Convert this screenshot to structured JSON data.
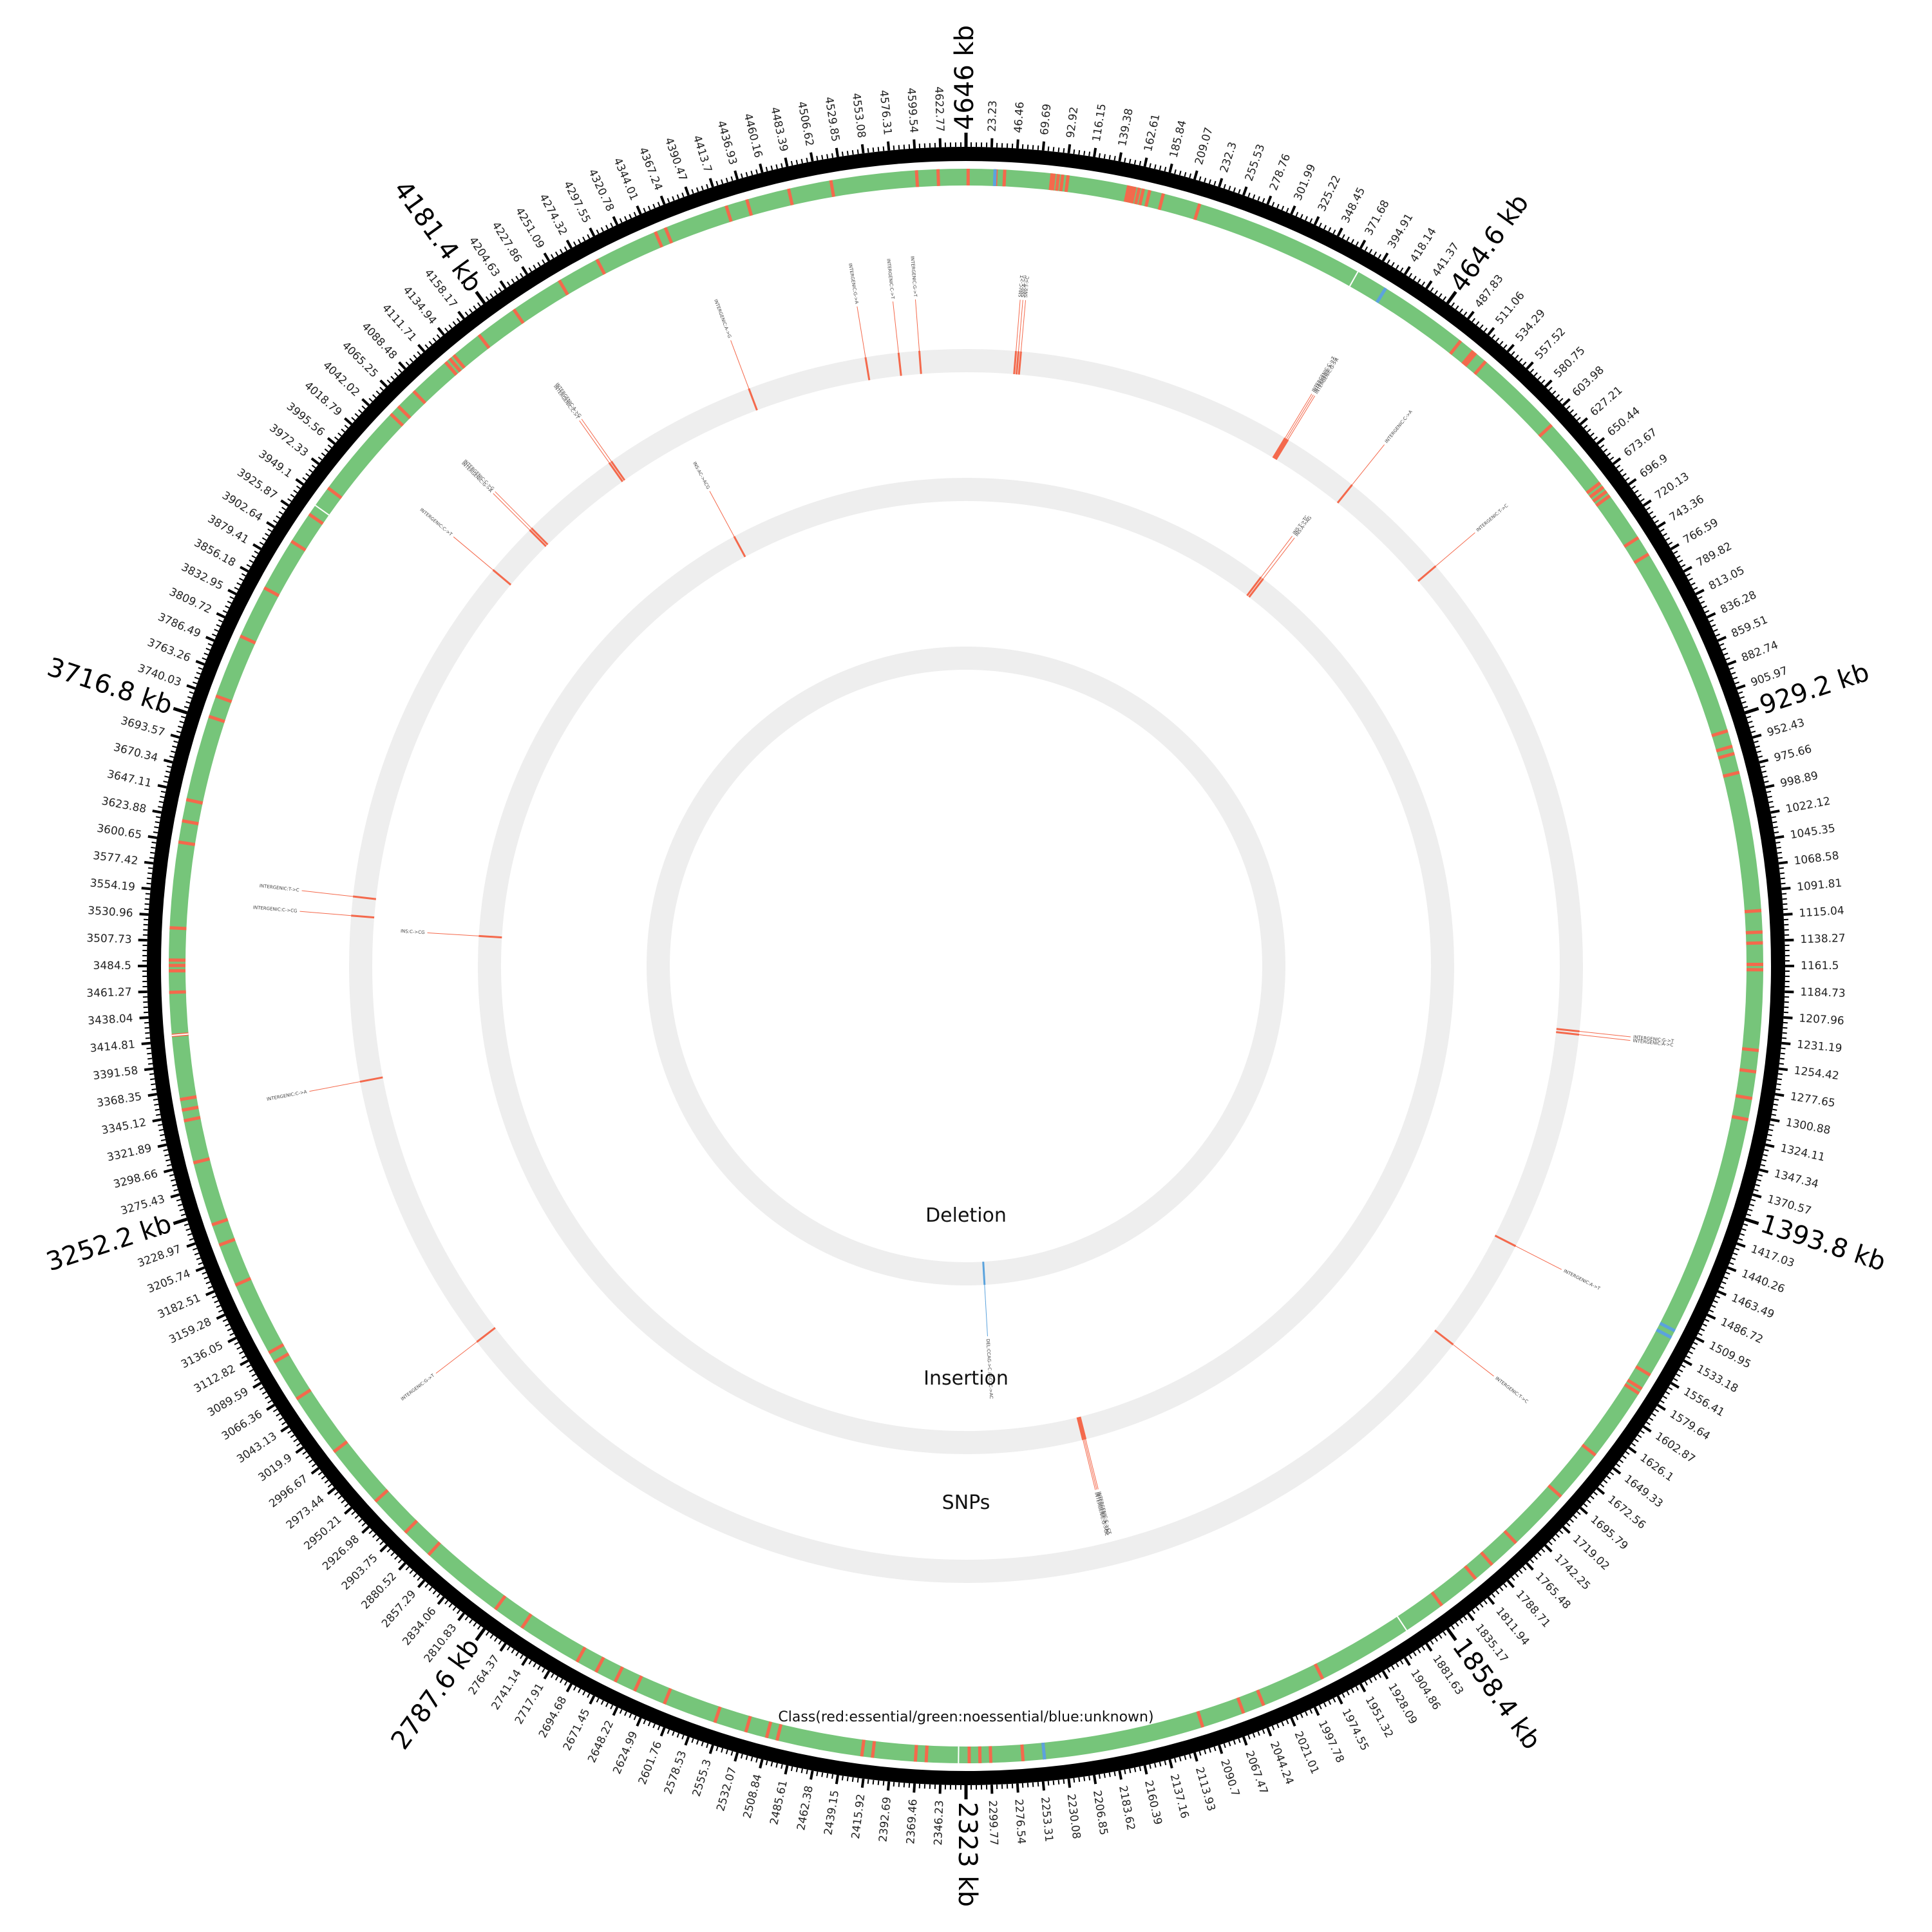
{
  "genome": {
    "length_kb": 4646
  },
  "major_ticks": [
    {
      "kb": 0,
      "label": "4646 kb"
    },
    {
      "kb": 464.6,
      "label": "464.6 kb"
    },
    {
      "kb": 929.2,
      "label": "929.2 kb"
    },
    {
      "kb": 1393.8,
      "label": "1393.8 kb"
    },
    {
      "kb": 1858.4,
      "label": "1858.4 kb"
    },
    {
      "kb": 2323,
      "label": "2323 kb"
    },
    {
      "kb": 2787.6,
      "label": "2787.6 kb"
    },
    {
      "kb": 3252.2,
      "label": "3252.2 kb"
    },
    {
      "kb": 3716.8,
      "label": "3716.8 kb"
    },
    {
      "kb": 4181.4,
      "label": "4181.4 kb"
    }
  ],
  "minor_tick_step_kb": 23.23,
  "minor_tick_count": 200,
  "tracks": {
    "class_title": "Class(red:essential/green:noessential/blue:unknown)",
    "snps_title": "SNPs",
    "insertion_title": "Insertion",
    "deletion_title": "Deletion"
  },
  "colors": {
    "essential": "#f4694c",
    "noessential": "#76c57a",
    "unknown": "#5ba3dd",
    "track_background": "#eeeeee",
    "ideogram": "#000000"
  },
  "class_track": {
    "essential_kb": [
      2,
      28,
      36,
      80,
      82,
      86,
      90,
      95,
      152,
      155,
      158,
      162,
      166,
      172,
      185,
      220,
      495,
      510,
      513,
      525,
      610,
      680,
      685,
      690,
      695,
      742,
      760,
      940,
      955,
      962,
      980,
      1110,
      1130,
      1140,
      1160,
      1165,
      1240,
      1260,
      1285,
      1305,
      1560,
      1575,
      1580,
      1650,
      1700,
      1760,
      1790,
      1810,
      1850,
      1980,
      2040,
      2060,
      2100,
      2250,
      2270,
      2300,
      2310,
      2320,
      2360,
      2370,
      2410,
      2420,
      2500,
      2510,
      2530,
      2560,
      2610,
      2640,
      2660,
      2680,
      2700,
      2760,
      2790,
      2870,
      2900,
      2940,
      3000,
      3060,
      3100,
      3110,
      3180,
      3220,
      3240,
      3300,
      3340,
      3350,
      3360,
      3420,
      3460,
      3480,
      3485,
      3490,
      3520,
      3600,
      3620,
      3640,
      3720,
      3740,
      3800,
      3850,
      3900,
      3930,
      3960,
      4050,
      4060,
      4080,
      4120,
      4125,
      4130,
      4160,
      4200,
      4250,
      4290,
      4350,
      4360,
      4420,
      4440,
      4480,
      4520,
      4600,
      4620
    ],
    "unknown_kb": [
      27,
      410,
      1513,
      1520,
      2250
    ]
  },
  "snps": [
    {
      "kb": 60,
      "label": "SNV:C->T"
    },
    {
      "kb": 63,
      "label": "SNV:A->G"
    },
    {
      "kb": 66,
      "label": "SNV:T->C"
    },
    {
      "kb": 402,
      "label": "INTERGENIC:C->T"
    },
    {
      "kb": 404,
      "label": "INTERGENIC:A->G"
    },
    {
      "kb": 406,
      "label": "INTERGENIC:G->A"
    },
    {
      "kb": 500,
      "label": "INTERGENIC:C->A"
    },
    {
      "kb": 640,
      "label": "INTERGENIC:T->C"
    },
    {
      "kb": 1240,
      "label": "INTERGENIC:G->T"
    },
    {
      "kb": 1244,
      "label": "INTERGENIC:A->C"
    },
    {
      "kb": 1510,
      "label": "INTERGENIC:A->T"
    },
    {
      "kb": 1650,
      "label": "INTERGENIC:T->C"
    },
    {
      "kb": 3000,
      "label": "INTERGENIC:G->T"
    },
    {
      "kb": 3345,
      "label": "INTERGENIC:C->A"
    },
    {
      "kb": 3568,
      "label": "INTERGENIC:T->C"
    },
    {
      "kb": 3545,
      "label": "INTERGENIC:C->CG"
    },
    {
      "kb": 4000,
      "label": "INTERGENIC:C->T"
    },
    {
      "kb": 4065,
      "label": "INTERGENIC:G->A"
    },
    {
      "kb": 4068,
      "label": "INTERGENIC:C->G"
    },
    {
      "kb": 4190,
      "label": "INTERGENIC:C->T"
    },
    {
      "kb": 4193,
      "label": "INTERGENIC:A->G"
    },
    {
      "kb": 4380,
      "label": "INTERGENIC:A->G"
    },
    {
      "kb": 4525,
      "label": "INTERGENIC:G->A"
    },
    {
      "kb": 4565,
      "label": "INTERGENIC:C->T"
    },
    {
      "kb": 4590,
      "label": "INTERGENIC:G->T"
    }
  ],
  "insertions": [
    {
      "kb": 480,
      "label": "INS:T->TC"
    },
    {
      "kb": 484,
      "label": "INS:A->AG"
    },
    {
      "kb": 2140,
      "label": "INTERGENIC:C->CT"
    },
    {
      "kb": 2142,
      "label": "INTERGENIC:A->AG"
    },
    {
      "kb": 2144,
      "label": "INTERGENIC:G->GC"
    },
    {
      "kb": 3530,
      "label": "INS:C->CG"
    },
    {
      "kb": 4280,
      "label": "INS:AC->ACG"
    }
  ],
  "deletions": [
    {
      "kb": 2280,
      "label": "DEL:CCAG->C / ACCC->AC"
    }
  ]
}
